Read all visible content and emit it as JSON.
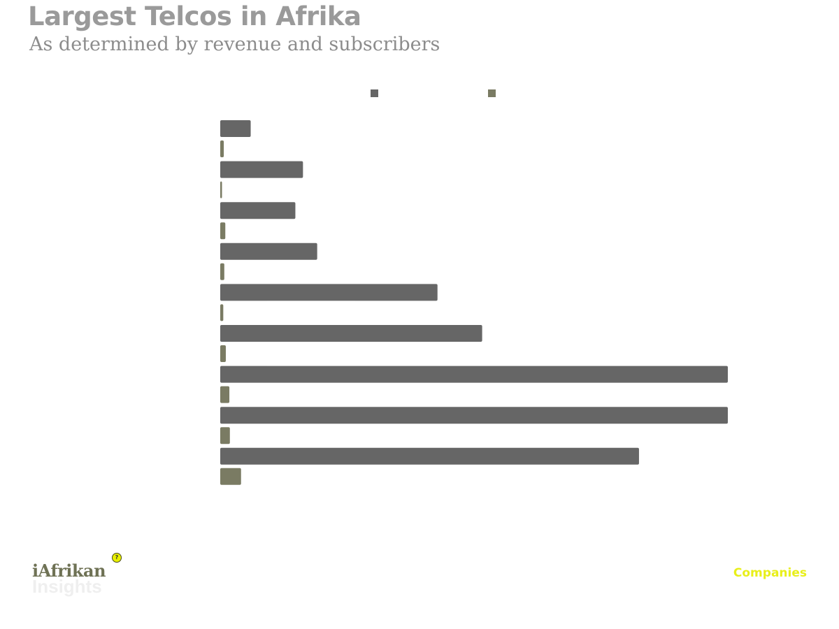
{
  "header": {
    "title": "Largest Telcos in Afrika",
    "subtitle": "As determined by revenue and subscribers"
  },
  "footer": {
    "brand_name": "iAfrikan",
    "brand_sub": "Insights",
    "brand_icon": "lightbulb-icon",
    "category_label": "Companies"
  },
  "colors": {
    "series_1": "#666666",
    "series_2": "#7a7b63",
    "title": "#9a9a9a",
    "category": "#e8ef1a"
  },
  "chart_data": {
    "type": "bar",
    "orientation": "horizontal",
    "categories": [
      "",
      "",
      "",
      "",
      "",
      "",
      "",
      "",
      ""
    ],
    "series": [
      {
        "values": [
          6,
          16.3,
          14.8,
          19.1,
          42.8,
          51.6,
          100,
          100,
          82.5
        ]
      },
      {
        "values": [
          0.7,
          0.3,
          1.0,
          0.8,
          0.6,
          1.1,
          1.8,
          1.9,
          4.1
        ]
      }
    ],
    "xlim": [
      0,
      100
    ],
    "grid": false,
    "legend_position": "top-center"
  }
}
